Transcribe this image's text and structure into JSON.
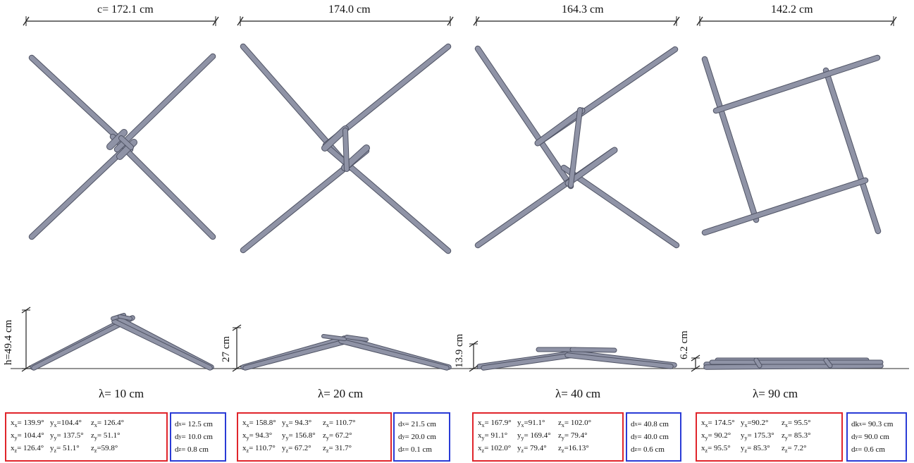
{
  "span_labels": [
    "c= 172.1 cm",
    "174.0 cm",
    "164.3 cm",
    "142.2 cm"
  ],
  "height_labels": [
    "h=49.4 cm",
    "27 cm",
    "13.9 cm",
    "6.2 cm"
  ],
  "lambda_labels": [
    "λ= 10 cm",
    "λ= 20 cm",
    "λ= 40 cm",
    "λ= 90 cm"
  ],
  "panels": [
    {
      "angles": [
        [
          {
            "s": "x",
            "b": "x",
            "v": "= 139.9°"
          },
          {
            "s": "y",
            "b": "x",
            "v": "=104.4°"
          },
          {
            "s": "z",
            "b": "x",
            "v": "= 126.4°"
          }
        ],
        [
          {
            "s": "x",
            "b": "y",
            "v": "= 104.4°"
          },
          {
            "s": "y",
            "b": "y",
            "v": "= 137.5°"
          },
          {
            "s": "z",
            "b": "y",
            "v": "= 51.1°"
          }
        ],
        [
          {
            "s": "x",
            "b": "z",
            "v": "= 126.4°"
          },
          {
            "s": "y",
            "b": "z",
            "v": "= 51.1°"
          },
          {
            "s": "z",
            "b": "z",
            "v": "=59.8°"
          }
        ]
      ],
      "d": [
        {
          "s": "d",
          "b": "x",
          "v": " = 12.5 cm"
        },
        {
          "s": "d",
          "b": "y",
          "v": " = 10.0 cm"
        },
        {
          "s": "d",
          "b": "z",
          "v": " = 0.8 cm"
        }
      ]
    },
    {
      "angles": [
        [
          {
            "s": "x",
            "b": "x",
            "v": "= 158.8°"
          },
          {
            "s": "y",
            "b": "x",
            "v": "= 94.3°"
          },
          {
            "s": "z",
            "b": "x",
            "v": "= 110.7°"
          }
        ],
        [
          {
            "s": "x",
            "b": "y",
            "v": "= 94.3°"
          },
          {
            "s": "y",
            "b": "y",
            "v": "= 156.8°"
          },
          {
            "s": "z",
            "b": "y",
            "v": "= 67.2°"
          }
        ],
        [
          {
            "s": "x",
            "b": "z",
            "v": "= 110.7°"
          },
          {
            "s": "y",
            "b": "z",
            "v": "= 67.2°"
          },
          {
            "s": "z",
            "b": "z",
            "v": "= 31.7°"
          }
        ]
      ],
      "d": [
        {
          "s": "d",
          "b": "x",
          "v": " = 21.5 cm"
        },
        {
          "s": "d",
          "b": "y",
          "v": " = 20.0 cm"
        },
        {
          "s": "d",
          "b": "z",
          "v": " = 0.1 cm"
        }
      ]
    },
    {
      "angles": [
        [
          {
            "s": "x",
            "b": "x",
            "v": "= 167.9°"
          },
          {
            "s": "y",
            "b": "x",
            "v": "=91.1°"
          },
          {
            "s": "z",
            "b": "x",
            "v": "= 102.0°"
          }
        ],
        [
          {
            "s": "x",
            "b": "y",
            "v": "= 91.1°"
          },
          {
            "s": "y",
            "b": "y",
            "v": "= 169.4°"
          },
          {
            "s": "z",
            "b": "y",
            "v": "= 79.4°"
          }
        ],
        [
          {
            "s": "x",
            "b": "z",
            "v": "= 102.0°"
          },
          {
            "s": "y",
            "b": "z",
            "v": "= 79.4°"
          },
          {
            "s": "z",
            "b": "z",
            "v": "=16.13°"
          }
        ]
      ],
      "d": [
        {
          "s": "d",
          "b": "x",
          "v": " = 40.8 cm"
        },
        {
          "s": "d",
          "b": "y",
          "v": " = 40.0 cm"
        },
        {
          "s": "d",
          "b": "z",
          "v": " = 0.6 cm"
        }
      ]
    },
    {
      "angles": [
        [
          {
            "s": "x",
            "b": "x",
            "v": "= 174.5°"
          },
          {
            "s": "y",
            "b": "x",
            "v": "=90.2°"
          },
          {
            "s": "z",
            "b": "x",
            "v": "= 95.5°"
          }
        ],
        [
          {
            "s": "x",
            "b": "y",
            "v": "= 90.2°"
          },
          {
            "s": "y",
            "b": "y",
            "v": "= 175.3°"
          },
          {
            "s": "z",
            "b": "y",
            "v": "= 85.3°"
          }
        ],
        [
          {
            "s": "x",
            "b": "z",
            "v": "= 95.5°"
          },
          {
            "s": "y",
            "b": "z",
            "v": "= 85.3°"
          },
          {
            "s": "z",
            "b": "z",
            "v": "= 7.2°"
          }
        ]
      ],
      "d": [
        {
          "s": "dk",
          "b": "x",
          "v": " = 90.3 cm"
        },
        {
          "s": "d",
          "b": "y",
          "v": " = 90.0 cm"
        },
        {
          "s": "d",
          "b": "z",
          "v": " = 0.6 cm"
        }
      ]
    }
  ],
  "colors": {
    "rod": "#8f93a6",
    "rod_edge": "#4f5364",
    "angle_box": "#e0252b",
    "d_box": "#2a3bd6"
  }
}
